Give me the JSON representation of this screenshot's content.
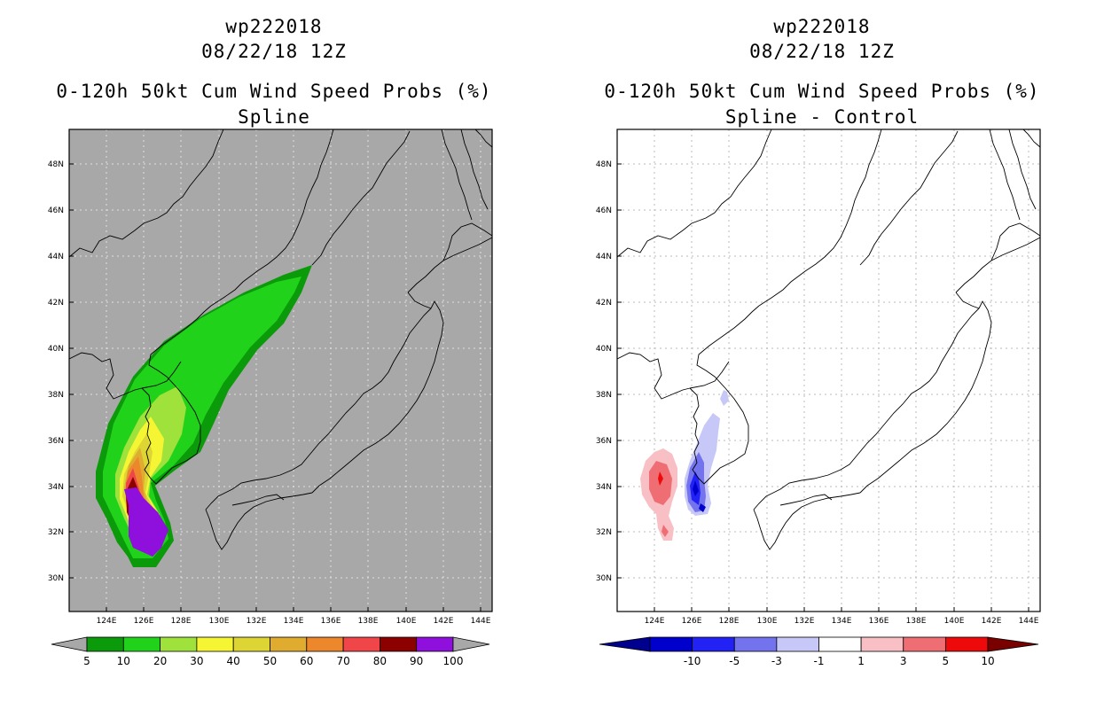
{
  "left_panel": {
    "storm_id": "wp222018",
    "date": "08/22/18 12Z",
    "product": "0-120h 50kt Cum Wind Speed Probs (%)",
    "subtitle": "Spline",
    "colorbar": {
      "labels": [
        "5",
        "10",
        "20",
        "30",
        "40",
        "50",
        "60",
        "70",
        "80",
        "90",
        "100"
      ],
      "colors": [
        "#0a9a0a",
        "#21d21b",
        "#9fe23b",
        "#f5f534",
        "#dcd534",
        "#e0ac2f",
        "#ed872b",
        "#f0464a",
        "#8c0000",
        "#8f0fdc"
      ]
    }
  },
  "right_panel": {
    "storm_id": "wp222018",
    "date": "08/22/18 12Z",
    "product": "0-120h 50kt Cum Wind Speed Probs (%)",
    "subtitle": "Spline - Control",
    "colorbar": {
      "labels": [
        "-10",
        "-5",
        "-3",
        "-1",
        "1",
        "3",
        "5",
        "10"
      ],
      "colors": [
        "#0000cc",
        "#2222f5",
        "#7373ee",
        "#c8c8f8",
        "#ffffff",
        "#f8c0c4",
        "#ef6e74",
        "#ee0a0a"
      ],
      "end_colors": [
        "#00008e",
        "#7a0000"
      ]
    }
  },
  "map": {
    "lat_labels": [
      "48N",
      "46N",
      "44N",
      "42N",
      "40N",
      "38N",
      "36N",
      "34N",
      "32N",
      "30N"
    ],
    "lon_labels": [
      "124E",
      "126E",
      "128E",
      "130E",
      "132E",
      "134E",
      "136E",
      "138E",
      "140E",
      "142E",
      "144E"
    ],
    "land_color_spline": "#a8a8a8"
  }
}
